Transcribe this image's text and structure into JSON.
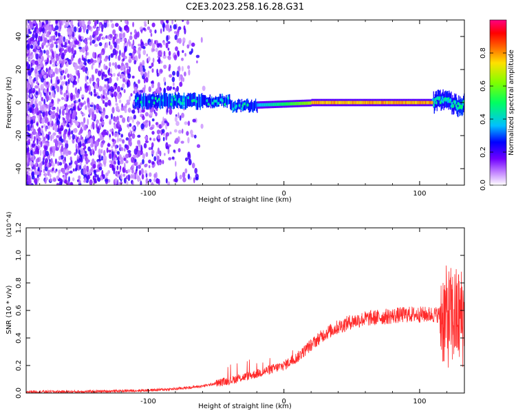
{
  "figure_title": "C2E3.2023.258.16.28.G31",
  "chart_data": [
    {
      "type": "heatmap",
      "xlabel": "Height of straight line (km)",
      "ylabel": "Frequency (Hz)",
      "xlim": [
        -190,
        133
      ],
      "ylim": [
        -50,
        50
      ],
      "x_ticks": [
        -100,
        0,
        100
      ],
      "x_tick_labels": [
        "-100",
        "0",
        "100"
      ],
      "y_ticks": [
        -40,
        -20,
        0,
        20,
        40
      ],
      "y_tick_labels": [
        "-40",
        "-20",
        "0",
        "20",
        "40"
      ],
      "colorbar": {
        "label": "Normalized spectral amplitude",
        "range": [
          0,
          1
        ],
        "ticks": [
          0.0,
          0.2,
          0.4,
          0.6,
          0.8
        ],
        "tick_labels": [
          "0.0",
          "0.2",
          "0.4",
          "0.6",
          "0.8"
        ],
        "colors": [
          "#ffffff",
          "#c080ff",
          "#7000ff",
          "#0000ff",
          "#00c0ff",
          "#00ff60",
          "#80ff00",
          "#ffe000",
          "#ff6000",
          "#ff0000",
          "#ff0080"
        ]
      },
      "regions": [
        {
          "name": "broadband noise",
          "x": [
            -190,
            -60
          ],
          "freq": [
            -50,
            50
          ],
          "amplitude": 0.15
        },
        {
          "name": "signal band",
          "x": [
            -110,
            -20
          ],
          "freq_center": 0,
          "freq_spread": 4,
          "amplitude": 0.35
        },
        {
          "name": "carrier line",
          "x": [
            -20,
            110
          ],
          "freq_center": -1,
          "amplitude": 0.75
        },
        {
          "name": "end turbulence",
          "x": [
            110,
            133
          ],
          "freq_center": 0,
          "freq_spread": 6,
          "amplitude": 0.35
        }
      ]
    },
    {
      "type": "line",
      "xlabel": "Height of straight line (km)",
      "ylabel": "SNR (10 * v/v)",
      "y_multiplier": "(x10^4)",
      "xlim": [
        -190,
        133
      ],
      "ylim": [
        0,
        1.2
      ],
      "x_ticks": [
        -100,
        0,
        100
      ],
      "x_tick_labels": [
        "-100",
        "0",
        "100"
      ],
      "y_ticks": [
        0.0,
        0.2,
        0.4,
        0.6,
        0.8,
        1.0,
        1.2
      ],
      "y_tick_labels": [
        "0.0",
        "0.2",
        "0.4",
        "0.6",
        "0.8",
        "1.0",
        "1.2"
      ],
      "series": [
        {
          "color": "#ff2a2a",
          "x": [
            -190,
            -150,
            -120,
            -100,
            -80,
            -60,
            -40,
            -20,
            0,
            10,
            20,
            30,
            40,
            50,
            60,
            70,
            80,
            90,
            100,
            110,
            115,
            120,
            125,
            130,
            133
          ],
          "y": [
            0.01,
            0.01,
            0.015,
            0.02,
            0.03,
            0.05,
            0.09,
            0.14,
            0.2,
            0.26,
            0.35,
            0.43,
            0.48,
            0.52,
            0.54,
            0.55,
            0.56,
            0.57,
            0.57,
            0.57,
            0.57,
            0.55,
            0.55,
            0.55,
            0.55
          ]
        }
      ]
    }
  ]
}
